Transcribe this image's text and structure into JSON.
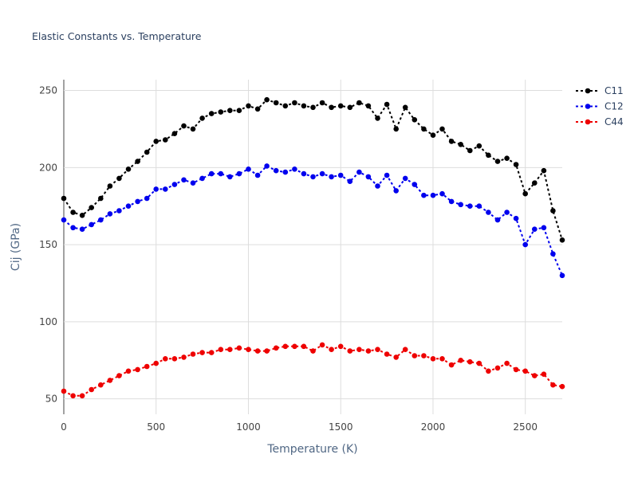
{
  "chart_data": {
    "type": "line",
    "title": "Elastic Constants vs. Temperature",
    "xlabel": "Temperature (K)",
    "ylabel": "Cij (GPa)",
    "xlim": [
      0,
      2700
    ],
    "ylim": [
      40,
      257
    ],
    "xticks": [
      0,
      500,
      1000,
      1500,
      2000,
      2500
    ],
    "yticks": [
      50,
      100,
      150,
      200,
      250
    ],
    "grid": true,
    "legend_position": "top-right",
    "x": [
      0,
      50,
      100,
      150,
      200,
      250,
      300,
      350,
      400,
      450,
      500,
      550,
      600,
      650,
      700,
      750,
      800,
      850,
      900,
      950,
      1000,
      1050,
      1100,
      1150,
      1200,
      1250,
      1300,
      1350,
      1400,
      1450,
      1500,
      1550,
      1600,
      1650,
      1700,
      1750,
      1800,
      1850,
      1900,
      1950,
      2000,
      2050,
      2100,
      2150,
      2200,
      2250,
      2300,
      2350,
      2400,
      2450,
      2500,
      2550,
      2600,
      2650,
      2700
    ],
    "series": [
      {
        "name": "C11",
        "color": "#000000",
        "values": [
          180,
          171,
          169,
          174,
          180,
          188,
          193,
          199,
          204,
          210,
          217,
          218,
          222,
          227,
          225,
          232,
          235,
          236,
          237,
          237,
          240,
          238,
          244,
          242,
          240,
          242,
          240,
          239,
          242,
          239,
          240,
          239,
          242,
          240,
          232,
          241,
          225,
          239,
          231,
          225,
          221,
          225,
          217,
          215,
          211,
          214,
          208,
          204,
          206,
          202,
          183,
          190,
          198,
          172,
          153
        ]
      },
      {
        "name": "C12",
        "color": "#0000ee",
        "values": [
          166,
          161,
          160,
          163,
          166,
          170,
          172,
          175,
          178,
          180,
          186,
          186,
          189,
          192,
          190,
          193,
          196,
          196,
          194,
          196,
          199,
          195,
          201,
          198,
          197,
          199,
          196,
          194,
          196,
          194,
          195,
          191,
          197,
          194,
          188,
          195,
          185,
          193,
          189,
          182,
          182,
          183,
          178,
          176,
          175,
          175,
          171,
          166,
          171,
          167,
          150,
          160,
          161,
          144,
          130
        ]
      },
      {
        "name": "C44",
        "color": "#ee0000",
        "values": [
          55,
          52,
          52,
          56,
          59,
          62,
          65,
          68,
          69,
          71,
          73,
          76,
          76,
          77,
          79,
          80,
          80,
          82,
          82,
          83,
          82,
          81,
          81,
          83,
          84,
          84,
          84,
          81,
          85,
          82,
          84,
          81,
          82,
          81,
          82,
          79,
          77,
          82,
          78,
          78,
          76,
          76,
          72,
          75,
          74,
          73,
          68,
          70,
          73,
          69,
          68,
          65,
          66,
          59,
          58
        ]
      }
    ]
  }
}
